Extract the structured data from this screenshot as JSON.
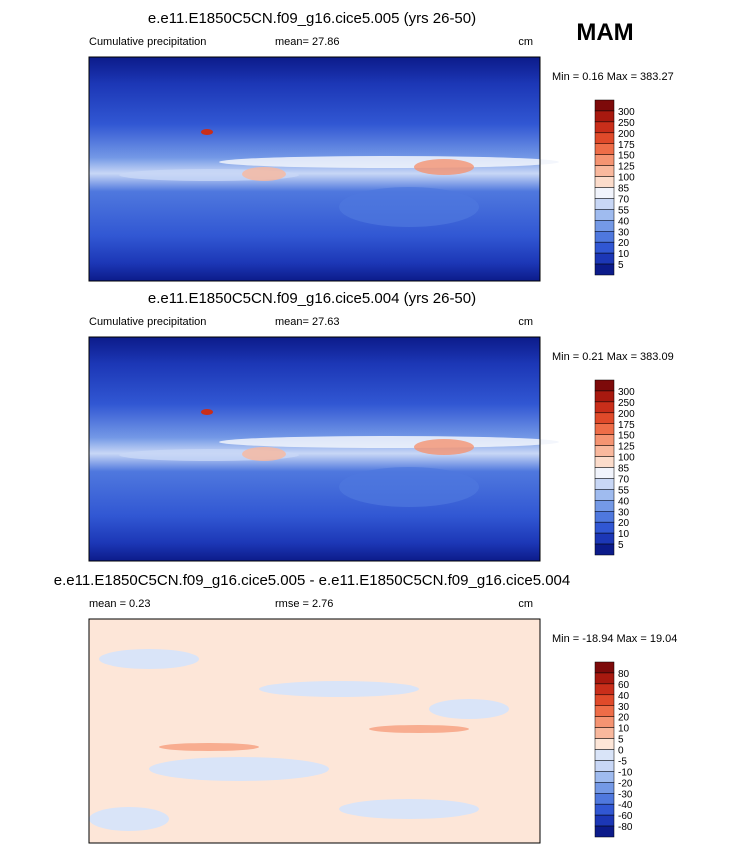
{
  "season": "MAM",
  "panels": [
    {
      "title": "e.e11.E1850C5CN.f09_g16.cice5.005 (yrs 26-50)",
      "left_label": "Cumulative precipitation",
      "center_label": "mean=  27.86",
      "right_label": "cm",
      "min_max": "Min =  0.16 Max = 383.27",
      "colorbar": {
        "labels": [
          300,
          250,
          200,
          175,
          150,
          125,
          100,
          85,
          70,
          55,
          40,
          30,
          20,
          10,
          5
        ],
        "colors": [
          "#7d0a0a",
          "#a8190f",
          "#c92e1a",
          "#e04a2a",
          "#ee6d48",
          "#f59472",
          "#f9b89d",
          "#fcdccb",
          "#f1f4fc",
          "#c8d7f6",
          "#9fbbef",
          "#7499e6",
          "#4f78de",
          "#3157d3",
          "#1c37b6",
          "#0c1b8a"
        ]
      }
    },
    {
      "title": "e.e11.E1850C5CN.f09_g16.cice5.004 (yrs 26-50)",
      "left_label": "Cumulative precipitation",
      "center_label": "mean=  27.63",
      "right_label": "cm",
      "min_max": "Min =  0.21 Max = 383.09",
      "colorbar": {
        "labels": [
          300,
          250,
          200,
          175,
          150,
          125,
          100,
          85,
          70,
          55,
          40,
          30,
          20,
          10,
          5
        ],
        "colors": [
          "#7d0a0a",
          "#a8190f",
          "#c92e1a",
          "#e04a2a",
          "#ee6d48",
          "#f59472",
          "#f9b89d",
          "#fcdccb",
          "#f1f4fc",
          "#c8d7f6",
          "#9fbbef",
          "#7499e6",
          "#4f78de",
          "#3157d3",
          "#1c37b6",
          "#0c1b8a"
        ]
      }
    },
    {
      "title": "e.e11.E1850C5CN.f09_g16.cice5.005 - e.e11.E1850C5CN.f09_g16.cice5.004",
      "left_label": "mean =  0.23",
      "center_label": "rmse =  2.76",
      "right_label": "cm",
      "min_max": "Min = -18.94 Max =  19.04",
      "colorbar": {
        "labels": [
          80,
          60,
          40,
          30,
          20,
          10,
          5,
          0,
          -5,
          -10,
          -20,
          -30,
          -40,
          -60,
          -80
        ],
        "colors": [
          "#7d0a0a",
          "#a8190f",
          "#c92e1a",
          "#e04a2a",
          "#ee6d48",
          "#f59472",
          "#f9b89d",
          "#fde6d8",
          "#d9e4f8",
          "#c8d7f6",
          "#9fbbef",
          "#7499e6",
          "#4f78de",
          "#3157d3",
          "#1c37b6",
          "#0c1b8a"
        ]
      }
    }
  ]
}
